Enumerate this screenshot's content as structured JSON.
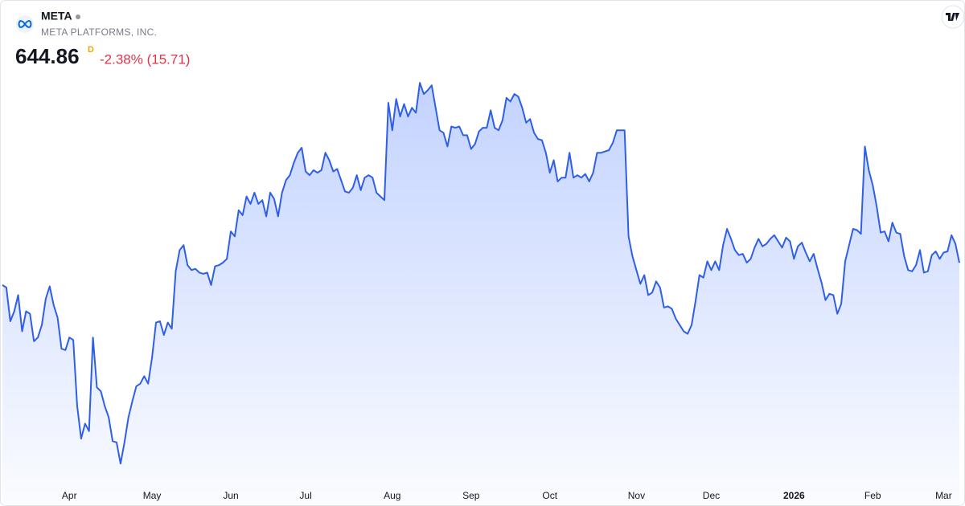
{
  "chart_data": {
    "type": "area",
    "title": "META",
    "subtitle": "META PLATFORMS, INC.",
    "last_price": "644.86",
    "interval": "D",
    "change": "-2.38% (15.71)",
    "color": "#2f5fe8",
    "xlim": [
      0,
      243
    ],
    "ylim": [
      470,
      800
    ],
    "xticks": [
      {
        "value": 17,
        "label": "Apr"
      },
      {
        "value": 38,
        "label": "May"
      },
      {
        "value": 58,
        "label": "Jun"
      },
      {
        "value": 77,
        "label": "Jul"
      },
      {
        "value": 99,
        "label": "Aug"
      },
      {
        "value": 119,
        "label": "Sep"
      },
      {
        "value": 139,
        "label": "Oct"
      },
      {
        "value": 161,
        "label": "Nov"
      },
      {
        "value": 180,
        "label": "Dec"
      },
      {
        "value": 201,
        "label": "2026"
      },
      {
        "value": 221,
        "label": "Feb"
      },
      {
        "value": 239,
        "label": "Mar"
      }
    ],
    "values": [
      627,
      625,
      598,
      606,
      619,
      590,
      606,
      604,
      582,
      585,
      595,
      616,
      626,
      611,
      601,
      576,
      575,
      585,
      583,
      530,
      504,
      516,
      510,
      585,
      545,
      542,
      530,
      521,
      502,
      501,
      484,
      501,
      521,
      534,
      546,
      548,
      554,
      548,
      569,
      597,
      598,
      587,
      597,
      592,
      638,
      655,
      659,
      643,
      639,
      640,
      637,
      636,
      637,
      627,
      642,
      643,
      645,
      648,
      670,
      666,
      687,
      683,
      698,
      692,
      701,
      692,
      695,
      682,
      701,
      696,
      682,
      701,
      711,
      715,
      725,
      733,
      737,
      718,
      715,
      719,
      717,
      719,
      733,
      727,
      718,
      720,
      711,
      702,
      701,
      705,
      715,
      703,
      713,
      715,
      713,
      701,
      698,
      695,
      773,
      751,
      776,
      762,
      772,
      762,
      769,
      765,
      789,
      780,
      783,
      787,
      769,
      751,
      749,
      738,
      754,
      753,
      754,
      747,
      747,
      736,
      740,
      750,
      753,
      753,
      767,
      753,
      751,
      759,
      777,
      774,
      780,
      778,
      769,
      757,
      760,
      749,
      744,
      743,
      733,
      717,
      727,
      710,
      713,
      713,
      733,
      713,
      715,
      713,
      716,
      710,
      717,
      733,
      733,
      734,
      735,
      741,
      751,
      751,
      751,
      666,
      650,
      639,
      628,
      635,
      619,
      621,
      630,
      625,
      609,
      610,
      608,
      600,
      595,
      590,
      588,
      595,
      614,
      635,
      633,
      646,
      639,
      646,
      639,
      659,
      672,
      664,
      655,
      651,
      652,
      645,
      648,
      657,
      664,
      658,
      660,
      664,
      667,
      662,
      657,
      665,
      662,
      648,
      658,
      661,
      653,
      646,
      652,
      640,
      629,
      615,
      620,
      619,
      604,
      612,
      646,
      659,
      672,
      671,
      668,
      738,
      719,
      707,
      690,
      669,
      670,
      662,
      677,
      669,
      668,
      650,
      639,
      638,
      643,
      655,
      637,
      638,
      651,
      654,
      648,
      653,
      654,
      667,
      660,
      644.86
    ]
  }
}
